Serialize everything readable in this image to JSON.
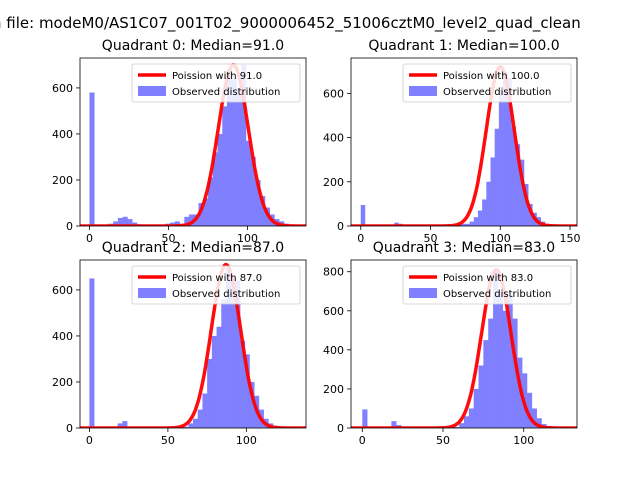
{
  "figure": {
    "suptitle": "n file: modeM0/AS1C07_001T02_9000006452_51006cztM0_level2_quad_clean"
  },
  "colors": {
    "hist": "#8080ff",
    "poisson": "#ff0000"
  },
  "chart_data": [
    {
      "type": "bar",
      "title": "Quadrant 0: Median=91.0",
      "legend": [
        "Poission with 91.0",
        "Observed distribution"
      ],
      "legend_loc": "upper right",
      "xlim": [
        -6,
        137
      ],
      "ylim": [
        0,
        730
      ],
      "xticks": [
        0,
        50,
        100
      ],
      "yticks": [
        0,
        200,
        400,
        600
      ],
      "median": 91,
      "peak": 700,
      "sigma": 9.5,
      "bin_width": 3,
      "x": [
        0,
        3,
        6,
        9,
        12,
        15,
        18,
        21,
        24,
        27,
        30,
        33,
        36,
        39,
        42,
        45,
        48,
        51,
        54,
        57,
        60,
        63,
        66,
        69,
        72,
        75,
        78,
        81,
        84,
        87,
        90,
        93,
        96,
        99,
        102,
        105,
        108,
        111,
        114,
        117,
        120,
        123,
        126,
        129
      ],
      "values": [
        580,
        5,
        5,
        5,
        10,
        20,
        35,
        40,
        30,
        15,
        8,
        5,
        5,
        5,
        5,
        5,
        10,
        15,
        20,
        10,
        40,
        50,
        50,
        100,
        120,
        210,
        320,
        400,
        520,
        680,
        640,
        600,
        700,
        370,
        300,
        200,
        130,
        80,
        50,
        30,
        20,
        10,
        5,
        3
      ]
    },
    {
      "type": "bar",
      "title": "Quadrant 1: Median=100.0",
      "legend": [
        "Poission with 100.0",
        "Observed distribution"
      ],
      "legend_loc": "upper right",
      "xlim": [
        -7,
        155
      ],
      "ylim": [
        0,
        760
      ],
      "xticks": [
        0,
        50,
        100,
        150
      ],
      "yticks": [
        0,
        200,
        400,
        600
      ],
      "median": 100,
      "peak": 720,
      "sigma": 10,
      "bin_width": 3,
      "x": [
        0,
        3,
        6,
        9,
        12,
        15,
        18,
        21,
        24,
        27,
        30,
        33,
        36,
        39,
        42,
        45,
        48,
        51,
        54,
        57,
        60,
        63,
        66,
        69,
        72,
        75,
        78,
        81,
        84,
        87,
        90,
        93,
        96,
        99,
        102,
        105,
        108,
        111,
        114,
        117,
        120,
        123,
        126,
        129,
        132,
        135,
        138,
        141,
        144
      ],
      "values": [
        95,
        5,
        5,
        5,
        5,
        5,
        5,
        5,
        15,
        10,
        5,
        5,
        5,
        5,
        5,
        5,
        5,
        5,
        5,
        5,
        5,
        5,
        5,
        10,
        10,
        10,
        20,
        40,
        70,
        120,
        200,
        310,
        440,
        610,
        700,
        670,
        450,
        370,
        300,
        190,
        100,
        60,
        40,
        20,
        10,
        5,
        5,
        3,
        2
      ]
    },
    {
      "type": "bar",
      "title": "Quadrant 2: Median=87.0",
      "legend": [
        "Poission with 87.0",
        "Observed distribution"
      ],
      "legend_loc": "upper right",
      "xlim": [
        -6,
        138
      ],
      "ylim": [
        0,
        730
      ],
      "xticks": [
        0,
        50,
        100
      ],
      "yticks": [
        0,
        200,
        400,
        600
      ],
      "median": 87,
      "peak": 710,
      "sigma": 9.3,
      "bin_width": 3,
      "x": [
        0,
        3,
        6,
        9,
        12,
        15,
        18,
        21,
        24,
        27,
        30,
        33,
        36,
        39,
        42,
        45,
        48,
        51,
        54,
        57,
        60,
        63,
        66,
        69,
        72,
        75,
        78,
        81,
        84,
        87,
        90,
        93,
        96,
        99,
        102,
        105,
        108,
        111,
        114,
        117,
        120,
        123,
        126,
        129
      ],
      "values": [
        650,
        5,
        5,
        5,
        5,
        5,
        20,
        30,
        5,
        5,
        5,
        5,
        5,
        5,
        5,
        5,
        5,
        5,
        5,
        5,
        5,
        20,
        40,
        80,
        150,
        300,
        400,
        440,
        560,
        700,
        660,
        640,
        380,
        320,
        200,
        140,
        80,
        40,
        20,
        10,
        5,
        3,
        2,
        2
      ]
    },
    {
      "type": "bar",
      "title": "Quadrant 3: Median=83.0",
      "legend": [
        "Poission with 83.0",
        "Observed distribution"
      ],
      "legend_loc": "upper right",
      "xlim": [
        -7,
        133
      ],
      "ylim": [
        0,
        860
      ],
      "xticks": [
        0,
        50,
        100
      ],
      "yticks": [
        0,
        200,
        400,
        600,
        800
      ],
      "median": 83,
      "peak": 810,
      "sigma": 9,
      "bin_width": 3,
      "x": [
        0,
        3,
        6,
        9,
        12,
        15,
        18,
        21,
        24,
        27,
        30,
        33,
        36,
        39,
        42,
        45,
        48,
        51,
        54,
        57,
        60,
        63,
        66,
        69,
        72,
        75,
        78,
        81,
        84,
        87,
        90,
        93,
        96,
        99,
        102,
        105,
        108,
        111,
        114,
        117,
        120,
        123
      ],
      "values": [
        95,
        5,
        5,
        5,
        5,
        5,
        35,
        15,
        5,
        5,
        5,
        5,
        5,
        5,
        5,
        5,
        5,
        5,
        5,
        5,
        25,
        60,
        100,
        200,
        320,
        450,
        560,
        800,
        700,
        600,
        680,
        560,
        360,
        280,
        180,
        100,
        50,
        20,
        10,
        5,
        3,
        2
      ]
    }
  ]
}
